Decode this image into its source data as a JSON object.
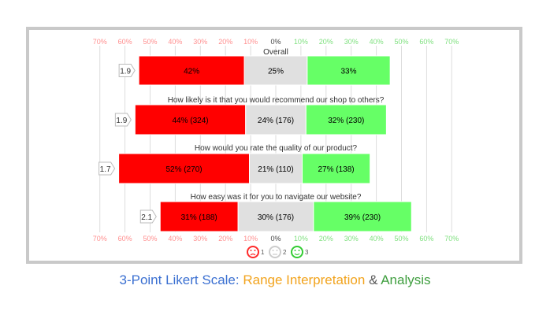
{
  "chart_data": {
    "type": "bar",
    "subtype": "diverging-stacked-likert",
    "x_ticks": [
      "70%",
      "60%",
      "50%",
      "40%",
      "30%",
      "20%",
      "10%",
      "0%",
      "10%",
      "20%",
      "30%",
      "40%",
      "50%",
      "60%",
      "70%"
    ],
    "xlim": [
      -70,
      70
    ],
    "colors": {
      "1": "#ff0000",
      "2": "#e0e0e0",
      "3": "#66ff66",
      "neg_tick": "#ff8f8f",
      "pos_tick": "#7fe07f",
      "zero_tick": "#444444",
      "grid": "#dddddd"
    },
    "legend": [
      {
        "key": "1",
        "label": "1",
        "icon": "sad-face-icon"
      },
      {
        "key": "2",
        "label": "2",
        "icon": "neutral-face-icon"
      },
      {
        "key": "3",
        "label": "3",
        "icon": "happy-face-icon"
      }
    ],
    "rows": [
      {
        "question": "Overall",
        "mean": "1.9",
        "segments": [
          {
            "key": "1",
            "value": 42,
            "label": "42%"
          },
          {
            "key": "2",
            "value": 25,
            "label": "25%"
          },
          {
            "key": "3",
            "value": 33,
            "label": "33%"
          }
        ]
      },
      {
        "question": "How likely is it that you would recommend our shop to others?",
        "mean": "1.9",
        "segments": [
          {
            "key": "1",
            "value": 44,
            "label": "44% (324)"
          },
          {
            "key": "2",
            "value": 24,
            "label": "24% (176)"
          },
          {
            "key": "3",
            "value": 32,
            "label": "32% (230)"
          }
        ]
      },
      {
        "question": "How would you rate the quality of our product?",
        "mean": "1.7",
        "segments": [
          {
            "key": "1",
            "value": 52,
            "label": "52% (270)"
          },
          {
            "key": "2",
            "value": 21,
            "label": "21% (110)"
          },
          {
            "key": "3",
            "value": 27,
            "label": "27% (138)"
          }
        ]
      },
      {
        "question": "How easy was it for you to navigate our website?",
        "mean": "2.1",
        "segments": [
          {
            "key": "1",
            "value": 31,
            "label": "31% (188)"
          },
          {
            "key": "2",
            "value": 30,
            "label": "30% (176)"
          },
          {
            "key": "3",
            "value": 39,
            "label": "39% (230)"
          }
        ]
      }
    ]
  },
  "caption": [
    {
      "text": "3-Point Likert Scale: ",
      "color": "#3a6fd1"
    },
    {
      "text": "Range Interpretation",
      "color": "#f2a31c"
    },
    {
      "text": " & ",
      "color": "#5a5a5a"
    },
    {
      "text": "Analysis",
      "color": "#3f9e3f"
    }
  ]
}
